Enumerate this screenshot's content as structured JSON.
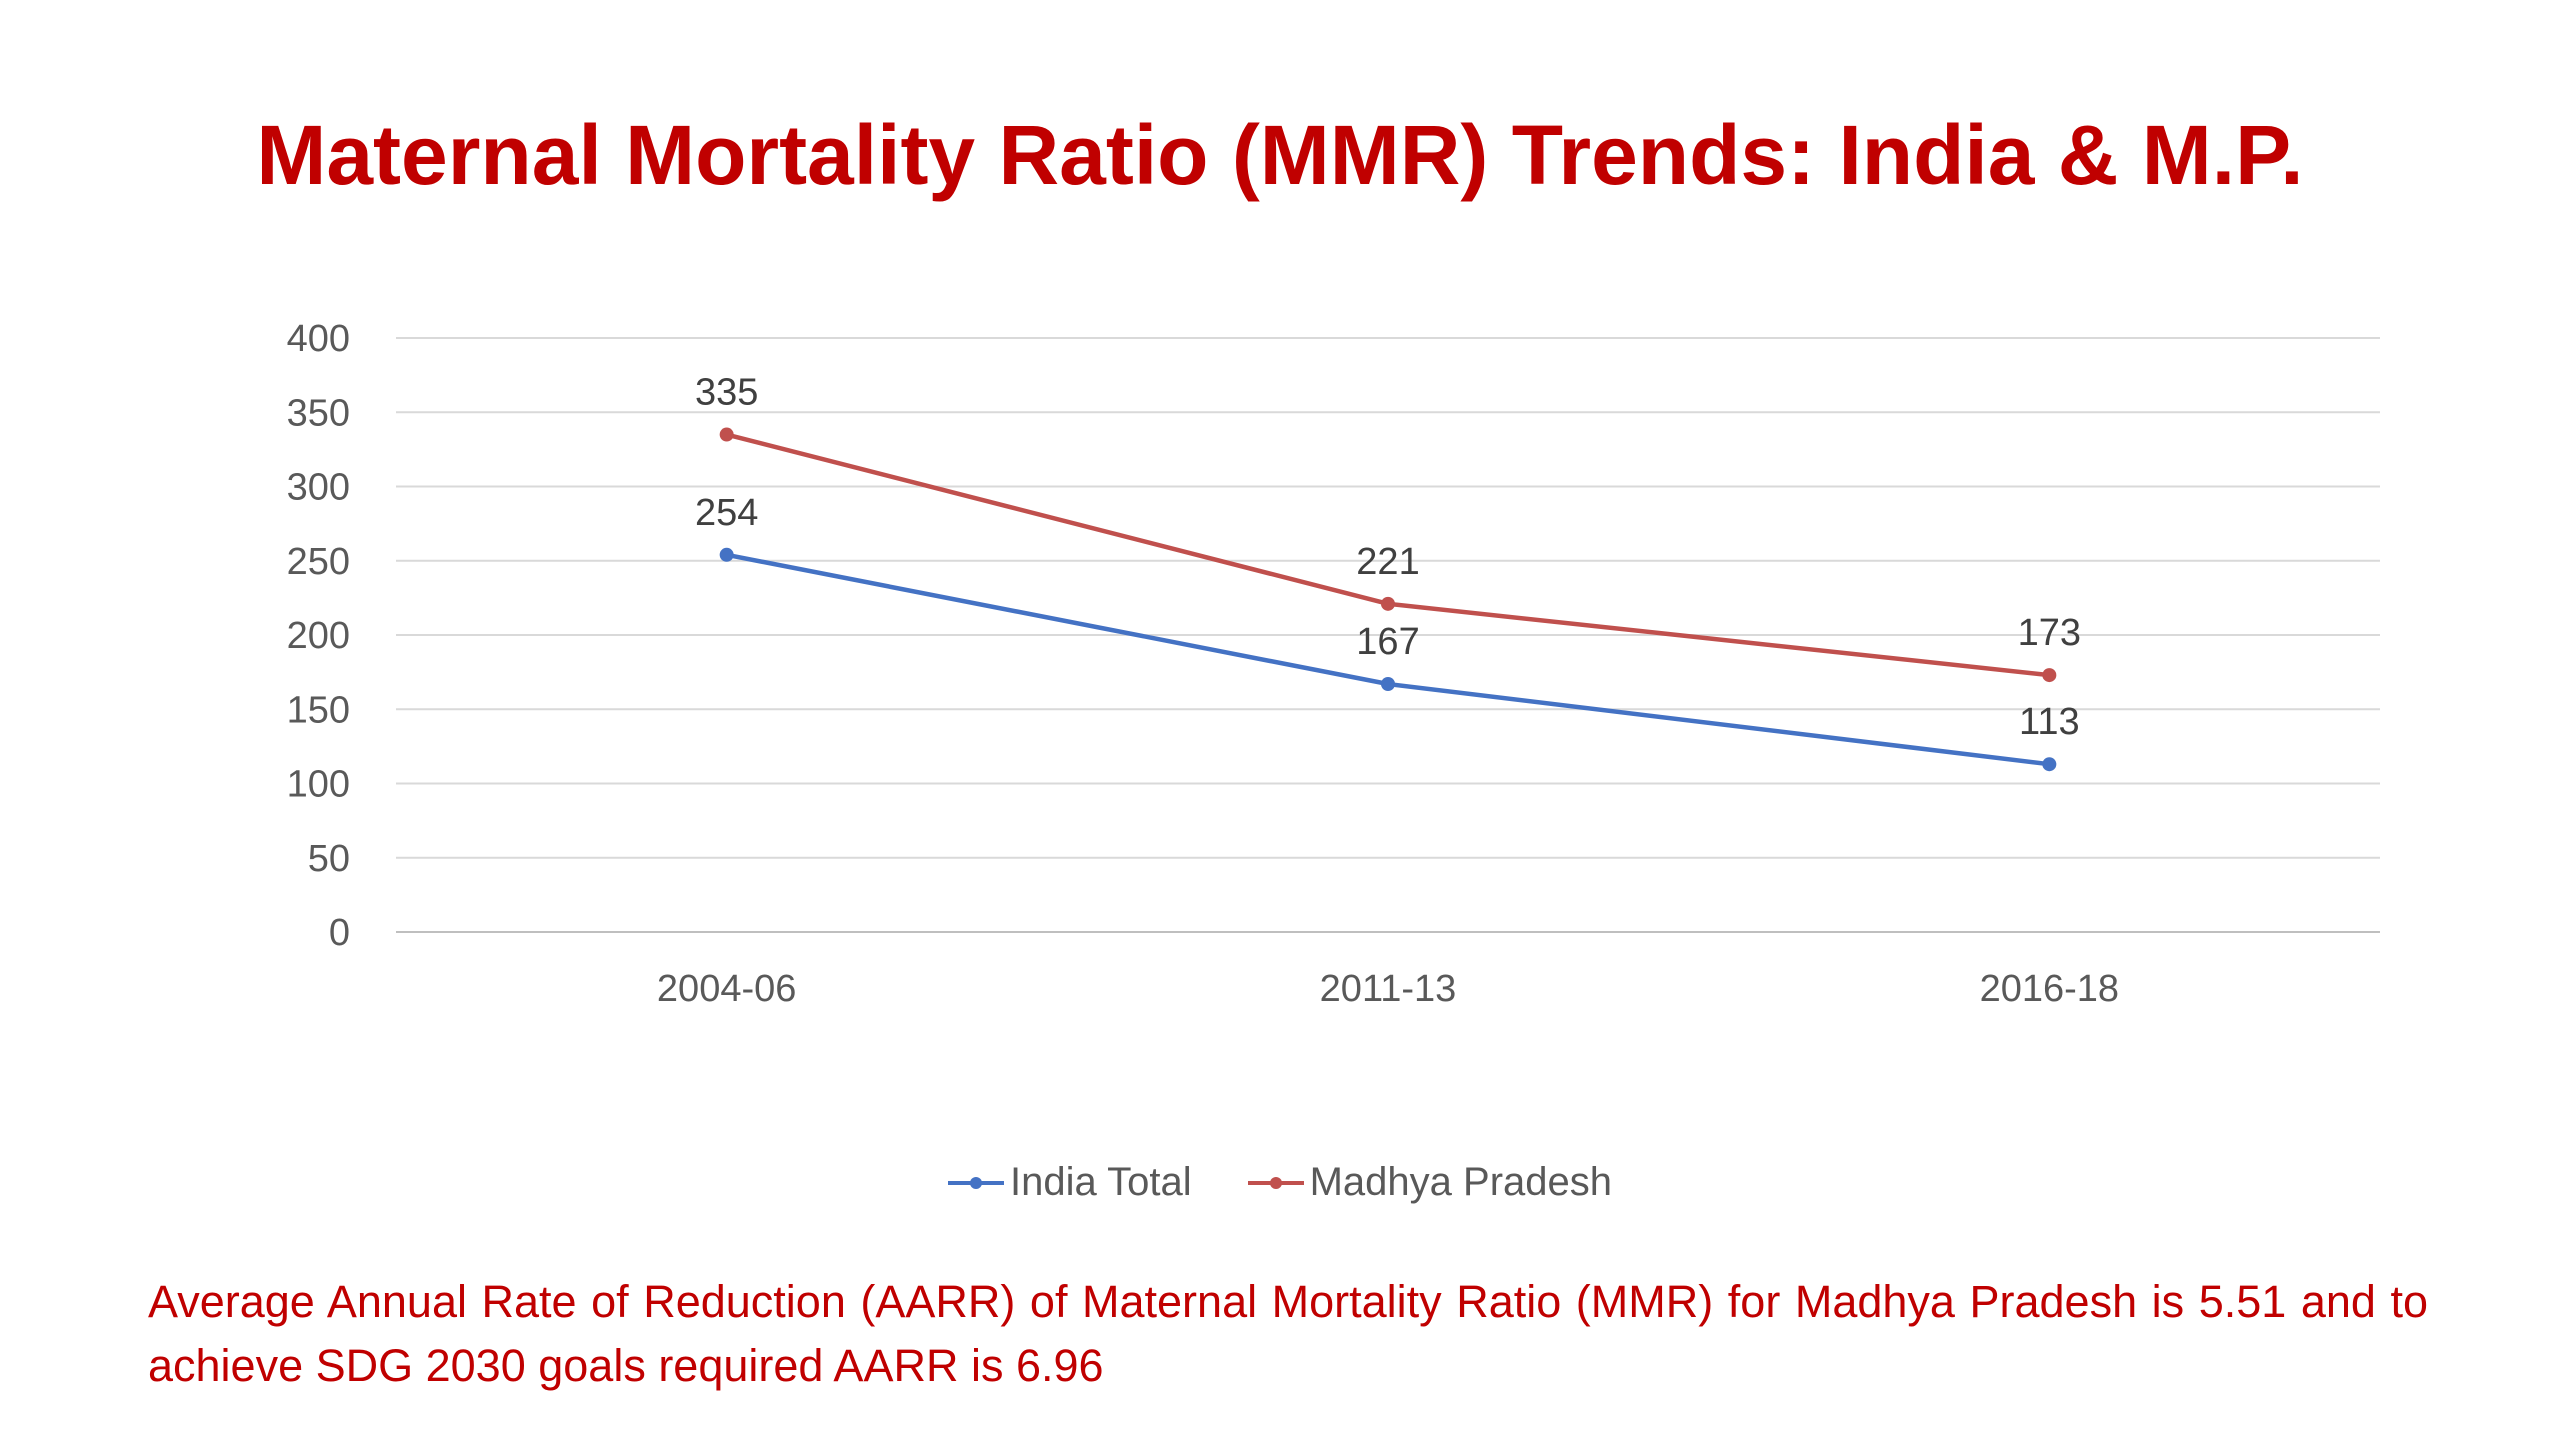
{
  "title": "Maternal Mortality Ratio (MMR) Trends: India & M.P.",
  "chart_data": {
    "type": "line",
    "categories": [
      "2004-06",
      "2011-13",
      "2016-18"
    ],
    "series": [
      {
        "name": "India Total",
        "values": [
          254,
          167,
          113
        ],
        "color": "#4472c4"
      },
      {
        "name": "Madhya Pradesh",
        "values": [
          335,
          221,
          173
        ],
        "color": "#c0504d"
      }
    ],
    "ylim": [
      0,
      400
    ],
    "yticks": [
      0,
      50,
      100,
      150,
      200,
      250,
      300,
      350,
      400
    ],
    "grid": true,
    "legend": "bottom",
    "data_labels": true
  },
  "note": "Average Annual Rate of Reduction (AARR) of Maternal Mortality Ratio (MMR)  for Madhya Pradesh is 5.51 and to achieve SDG 2030 goals required AARR is 6.96"
}
